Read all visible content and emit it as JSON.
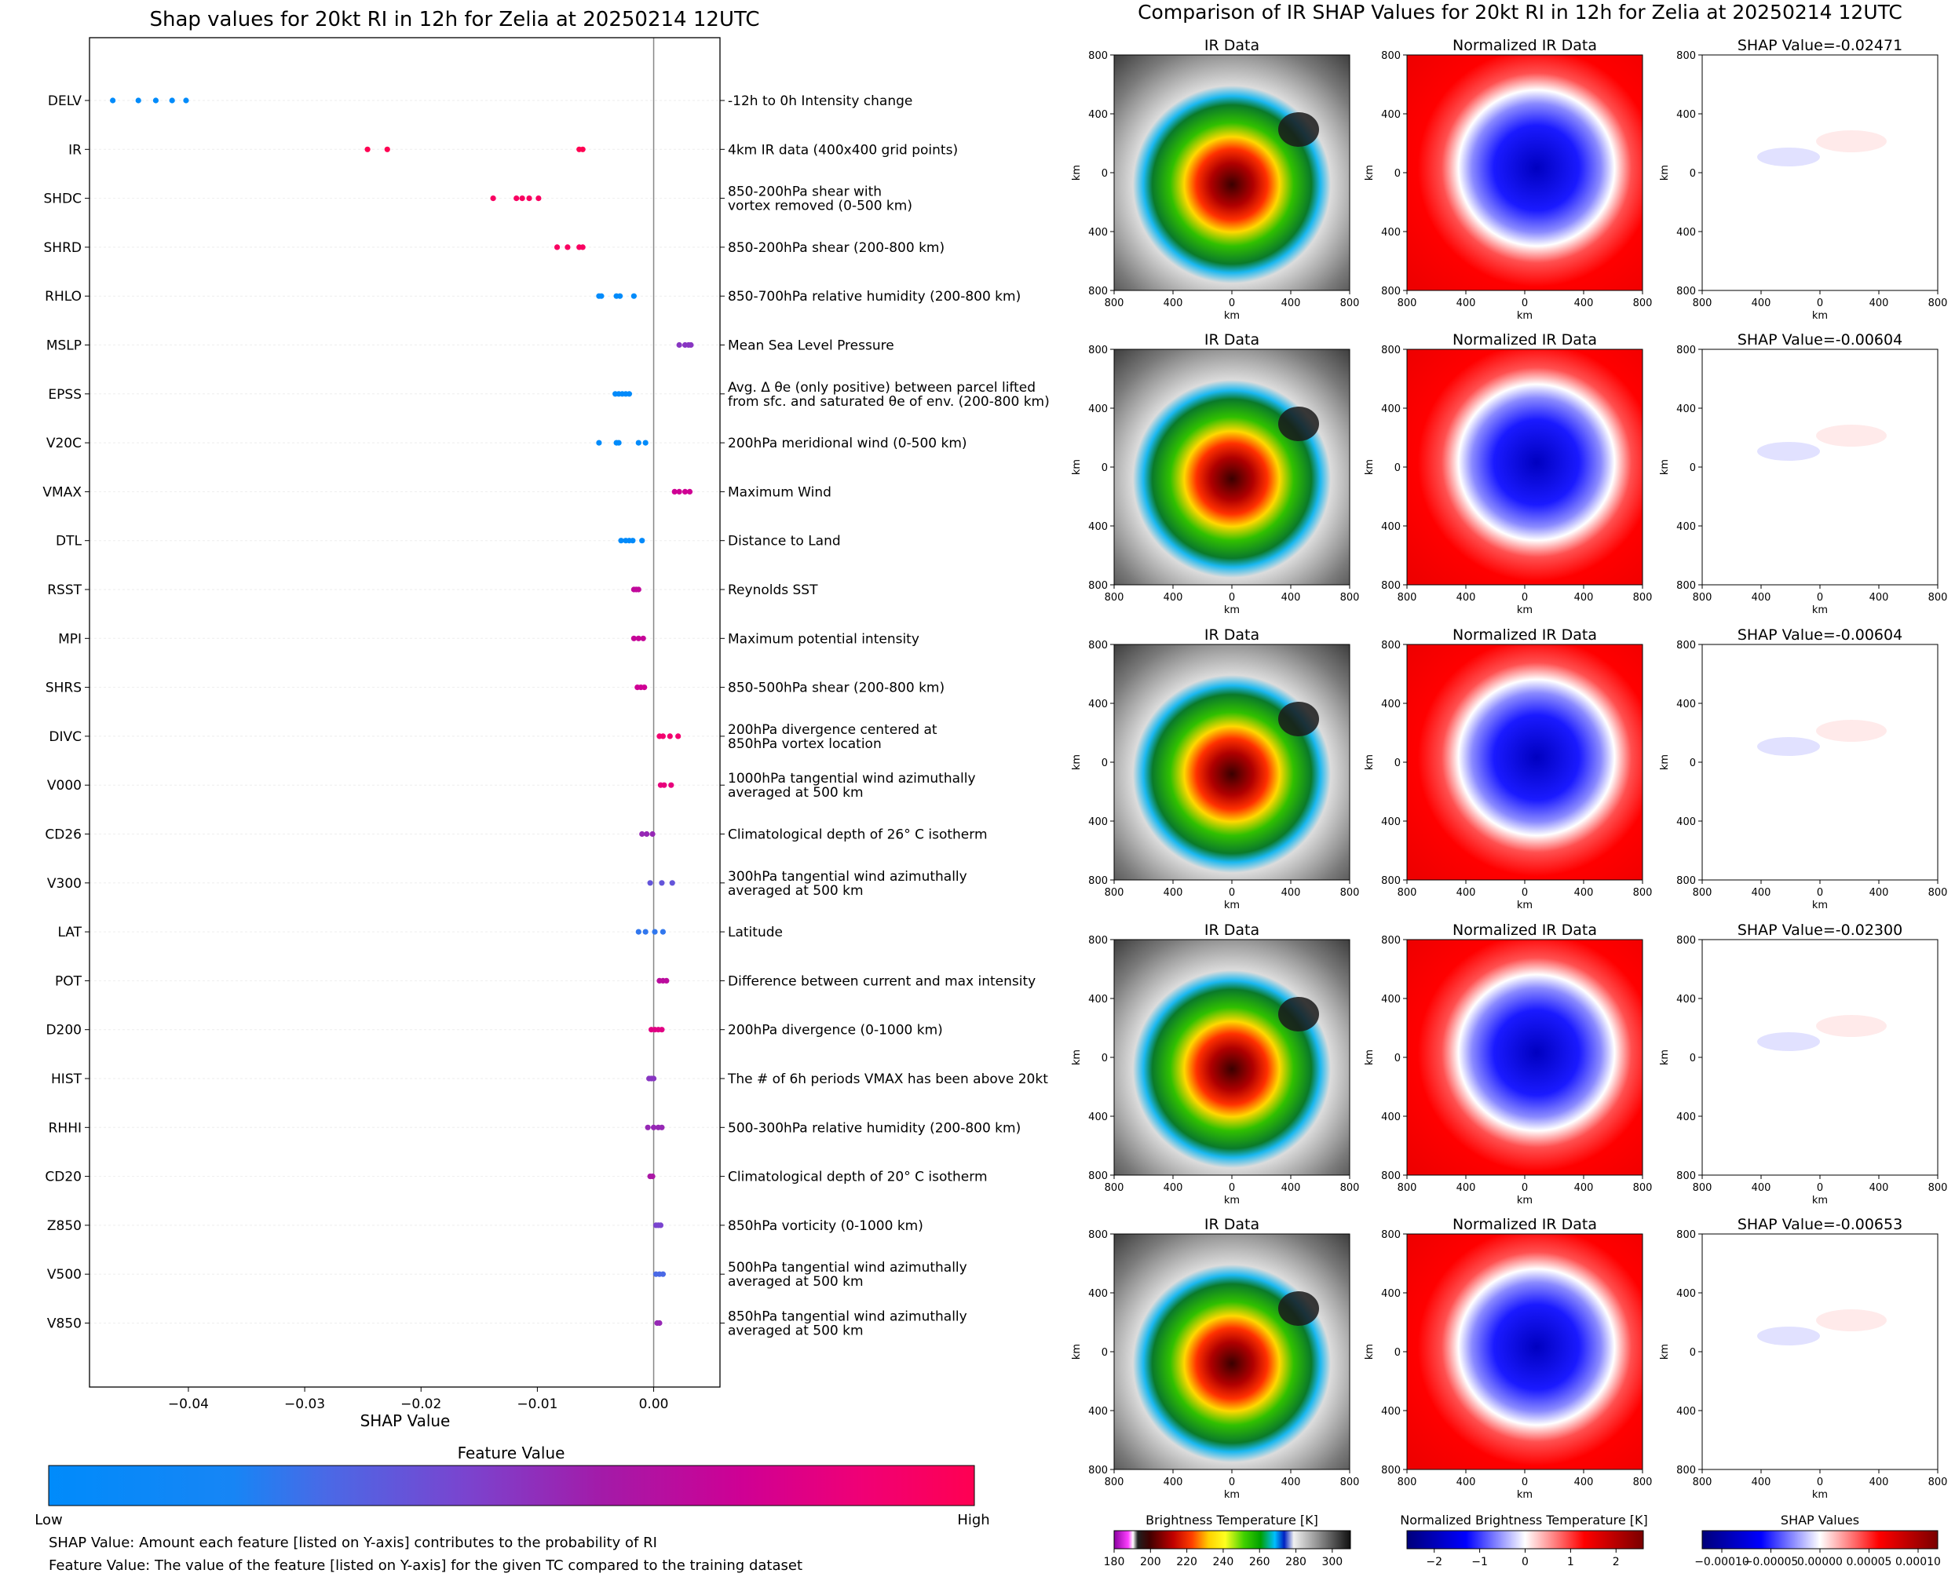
{
  "chart_data": [
    {
      "type": "scatter",
      "title": "Shap values for 20kt RI in 12h for Zelia at 20250214 12UTC",
      "xlabel": "SHAP Value",
      "xlim": [
        -0.0485,
        0.0057
      ],
      "x_ticks": [
        -0.04,
        -0.03,
        -0.02,
        -0.01,
        0.0
      ],
      "x_tick_labels": [
        "−0.04",
        "−0.03",
        "−0.02",
        "−0.01",
        "0.00"
      ],
      "colorbar": {
        "title": "Feature Value",
        "low_label": "Low",
        "high_label": "High",
        "colors": [
          "#008bfb",
          "#ff0052"
        ]
      },
      "features": [
        {
          "name": "DELV",
          "desc": [
            "-12h to 0h Intensity change"
          ],
          "shap": [
            -0.0465,
            -0.0443,
            -0.0428,
            -0.0414,
            -0.0402
          ],
          "fv": [
            0.0,
            0.0,
            0.0,
            0.0,
            0.0
          ]
        },
        {
          "name": "IR",
          "desc": [
            "4km IR data (400x400 grid points)"
          ],
          "shap": [
            -0.0246,
            -0.0229,
            -0.0064,
            -0.0061
          ],
          "fv": [
            1.0,
            1.0,
            1.0,
            1.0
          ]
        },
        {
          "name": "SHDC",
          "desc": [
            "850-200hPa shear with",
            "vortex removed (0-500 km)"
          ],
          "shap": [
            -0.0138,
            -0.0118,
            -0.0113,
            -0.0107,
            -0.0099
          ],
          "fv": [
            0.95,
            0.95,
            0.95,
            0.95,
            0.95
          ]
        },
        {
          "name": "SHRD",
          "desc": [
            "850-200hPa shear (200-800 km)"
          ],
          "shap": [
            -0.0083,
            -0.0074,
            -0.0064,
            -0.0061
          ],
          "fv": [
            0.95,
            0.95,
            0.95,
            0.95
          ]
        },
        {
          "name": "RHLO",
          "desc": [
            "850-700hPa relative humidity (200-800 km)"
          ],
          "shap": [
            -0.0047,
            -0.0045,
            -0.0032,
            -0.0029,
            -0.0017
          ],
          "fv": [
            0.0,
            0.0,
            0.0,
            0.0,
            0.0
          ]
        },
        {
          "name": "MSLP",
          "desc": [
            "Mean Sea Level Pressure"
          ],
          "shap": [
            0.0022,
            0.0027,
            0.003,
            0.0032
          ],
          "fv": [
            0.5,
            0.5,
            0.5,
            0.5
          ]
        },
        {
          "name": "EPSS",
          "desc": [
            "Avg. Δ θe (only positive) between parcel lifted",
            "from sfc. and saturated θe of env. (200-800 km)"
          ],
          "shap": [
            -0.0033,
            -0.003,
            -0.0027,
            -0.0024,
            -0.0021
          ],
          "fv": [
            0.02,
            0.02,
            0.02,
            0.02,
            0.02
          ]
        },
        {
          "name": "V20C",
          "desc": [
            "200hPa meridional wind (0-500 km)"
          ],
          "shap": [
            -0.0047,
            -0.0032,
            -0.003,
            -0.0013,
            -0.0007
          ],
          "fv": [
            0.0,
            0.0,
            0.0,
            0.0,
            0.0
          ]
        },
        {
          "name": "VMAX",
          "desc": [
            "Maximum Wind"
          ],
          "shap": [
            0.0018,
            0.0022,
            0.0027,
            0.0031
          ],
          "fv": [
            0.75,
            0.75,
            0.75,
            0.75
          ]
        },
        {
          "name": "DTL",
          "desc": [
            "Distance to Land"
          ],
          "shap": [
            -0.0028,
            -0.0024,
            -0.0021,
            -0.0018,
            -0.001
          ],
          "fv": [
            0.02,
            0.02,
            0.02,
            0.02,
            0.02
          ]
        },
        {
          "name": "RSST",
          "desc": [
            "Reynolds SST"
          ],
          "shap": [
            -0.0017,
            -0.0015,
            -0.0013
          ],
          "fv": [
            0.7,
            0.7,
            0.7
          ]
        },
        {
          "name": "MPI",
          "desc": [
            "Maximum potential intensity"
          ],
          "shap": [
            -0.0017,
            -0.0013,
            -0.0009
          ],
          "fv": [
            0.72,
            0.72,
            0.72
          ]
        },
        {
          "name": "SHRS",
          "desc": [
            "850-500hPa shear (200-800 km)"
          ],
          "shap": [
            -0.0014,
            -0.0011,
            -0.0008
          ],
          "fv": [
            0.75,
            0.75,
            0.75
          ]
        },
        {
          "name": "DIVC",
          "desc": [
            "200hPa divergence centered at",
            "850hPa vortex location"
          ],
          "shap": [
            0.0005,
            0.0008,
            0.0014,
            0.0021
          ],
          "fv": [
            0.9,
            0.9,
            0.9,
            0.9
          ]
        },
        {
          "name": "V000",
          "desc": [
            "1000hPa tangential wind azimuthally",
            "averaged at 500 km"
          ],
          "shap": [
            0.0006,
            0.0009,
            0.0015
          ],
          "fv": [
            0.85,
            0.85,
            0.85
          ]
        },
        {
          "name": "CD26",
          "desc": [
            "Climatological depth of 26° C isotherm"
          ],
          "shap": [
            -0.001,
            -0.0006,
            -0.0001
          ],
          "fv": [
            0.55,
            0.55,
            0.55
          ]
        },
        {
          "name": "V300",
          "desc": [
            "300hPa tangential wind azimuthally",
            "averaged at 500 km"
          ],
          "shap": [
            -0.0003,
            0.0007,
            0.0016
          ],
          "fv": [
            0.38,
            0.38,
            0.38
          ]
        },
        {
          "name": "LAT",
          "desc": [
            "Latitude"
          ],
          "shap": [
            -0.0013,
            -0.0007,
            0.0001,
            0.0008
          ],
          "fv": [
            0.25,
            0.25,
            0.25,
            0.25
          ]
        },
        {
          "name": "POT",
          "desc": [
            "Difference between current and max intensity"
          ],
          "shap": [
            0.0005,
            0.0008,
            0.0011
          ],
          "fv": [
            0.68,
            0.68,
            0.68
          ]
        },
        {
          "name": "D200",
          "desc": [
            "200hPa divergence (0-1000 km)"
          ],
          "shap": [
            -0.0002,
            0.0001,
            0.0004,
            0.0007
          ],
          "fv": [
            0.82,
            0.82,
            0.82,
            0.82
          ]
        },
        {
          "name": "HIST",
          "desc": [
            "The # of 6h periods VMAX has been above 20kt"
          ],
          "shap": [
            -0.0004,
            -0.0002,
            0.0
          ],
          "fv": [
            0.5,
            0.5,
            0.5
          ]
        },
        {
          "name": "RHHI",
          "desc": [
            "500-300hPa relative humidity (200-800 km)"
          ],
          "shap": [
            -0.0005,
            0.0,
            0.0004,
            0.0007
          ],
          "fv": [
            0.55,
            0.55,
            0.55,
            0.55
          ]
        },
        {
          "name": "CD20",
          "desc": [
            "Climatological depth of 20° C isotherm"
          ],
          "shap": [
            -0.0003,
            -0.0001
          ],
          "fv": [
            0.62,
            0.62
          ]
        },
        {
          "name": "Z850",
          "desc": [
            "850hPa vorticity (0-1000 km)"
          ],
          "shap": [
            0.0002,
            0.0004,
            0.0006
          ],
          "fv": [
            0.45,
            0.45,
            0.45
          ]
        },
        {
          "name": "V500",
          "desc": [
            "500hPa tangential wind azimuthally",
            "averaged at 500 km"
          ],
          "shap": [
            0.0002,
            0.0005,
            0.0008
          ],
          "fv": [
            0.3,
            0.3,
            0.3
          ]
        },
        {
          "name": "V850",
          "desc": [
            "850hPa tangential wind azimuthally",
            "averaged at 500 km"
          ],
          "shap": [
            0.0003,
            0.0005
          ],
          "fv": [
            0.55,
            0.55
          ]
        }
      ]
    },
    {
      "type": "heatmap",
      "title": "Comparison of IR SHAP Values for 20kt RI in 12h for Zelia at 20250214 12UTC",
      "axis_label": "km",
      "axis_ticks": [
        "800",
        "400",
        "0",
        "400",
        "800"
      ],
      "column_titles": [
        "IR Data",
        "Normalized IR Data"
      ],
      "rows": [
        {
          "shap_title": "SHAP Value=-0.02471"
        },
        {
          "shap_title": "SHAP Value=-0.00604"
        },
        {
          "shap_title": "SHAP Value=-0.00604"
        },
        {
          "shap_title": "SHAP Value=-0.02300"
        },
        {
          "shap_title": "SHAP Value=-0.00653"
        }
      ],
      "colorbars": [
        {
          "title": "Brightness Temperature [K]",
          "ticks": [
            "180",
            "200",
            "220",
            "240",
            "260",
            "280",
            "300"
          ],
          "range": [
            180,
            310
          ]
        },
        {
          "title": "Normalized Brightness Temperature [K]",
          "ticks": [
            "−2",
            "−1",
            "0",
            "1",
            "2"
          ],
          "range": [
            -2.6,
            2.6
          ]
        },
        {
          "title": "SHAP Values",
          "ticks": [
            "−0.00010",
            "−0.00005",
            "0.00000",
            "0.00005",
            "0.00010"
          ],
          "range": [
            -0.00012,
            0.00012
          ]
        }
      ]
    }
  ],
  "footnotes": {
    "shap_value": "SHAP Value: Amount each feature [listed on Y-axis] contributes to the probability of RI",
    "feature_value": "Feature Value: The value of the feature [listed on Y-axis] for the given TC compared to the training dataset"
  }
}
